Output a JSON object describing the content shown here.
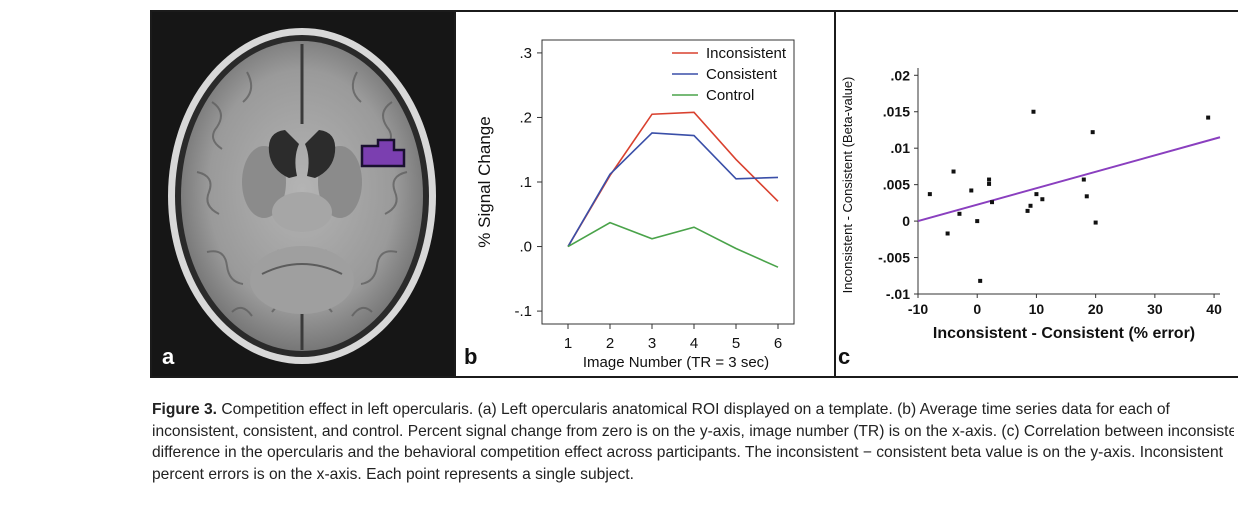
{
  "panel_labels": {
    "a": "a",
    "b": "b",
    "c": "c"
  },
  "colors": {
    "inconsistent": "#d9412f",
    "consistent": "#3a4fa8",
    "control": "#4aa34a",
    "roi": "#7b3fb0",
    "regression": "#8a3fbf"
  },
  "chart_data": [
    {
      "type": "line",
      "xlabel": "Image Number (TR = 3 sec)",
      "ylabel": "% Signal Change",
      "x": [
        1,
        2,
        3,
        4,
        5,
        6
      ],
      "xticks": [
        "1",
        "2",
        "3",
        "4",
        "5",
        "6"
      ],
      "yticks": [
        ".3",
        ".2",
        ".1",
        ".0",
        "-.1"
      ],
      "ytick_values": [
        0.3,
        0.2,
        0.1,
        0.0,
        -0.1
      ],
      "ylim": [
        -0.12,
        0.32
      ],
      "legend_position": "top-right",
      "series": [
        {
          "name": "Inconsistent",
          "color": "#d9412f",
          "values": [
            0.0,
            0.11,
            0.205,
            0.208,
            0.135,
            0.07
          ]
        },
        {
          "name": "Consistent",
          "color": "#3a4fa8",
          "values": [
            0.0,
            0.112,
            0.176,
            0.172,
            0.105,
            0.107
          ]
        },
        {
          "name": "Control",
          "color": "#4aa34a",
          "values": [
            0.0,
            0.037,
            0.012,
            0.03,
            -0.003,
            -0.032
          ]
        }
      ]
    },
    {
      "type": "scatter",
      "xlabel": "Inconsistent - Consistent (% error)",
      "ylabel": "Inconsistent - Consistent (Beta-value)",
      "xticks": [
        "-10",
        "0",
        "10",
        "20",
        "30",
        "40"
      ],
      "xtick_values": [
        -10,
        0,
        10,
        20,
        30,
        40
      ],
      "yticks": [
        ".02",
        ".015",
        ".01",
        ".005",
        "0",
        "-.005",
        "-.01"
      ],
      "ytick_values": [
        0.02,
        0.015,
        0.01,
        0.005,
        0,
        -0.005,
        -0.01
      ],
      "xlim": [
        -10,
        41
      ],
      "ylim": [
        -0.01,
        0.021
      ],
      "points": [
        {
          "x": -8,
          "y": 0.0037
        },
        {
          "x": -5,
          "y": -0.0017
        },
        {
          "x": -4,
          "y": 0.0068
        },
        {
          "x": -3,
          "y": 0.001
        },
        {
          "x": -1,
          "y": 0.0042
        },
        {
          "x": 0,
          "y": 0.0
        },
        {
          "x": 0.5,
          "y": -0.0082
        },
        {
          "x": 2,
          "y": 0.0057
        },
        {
          "x": 2,
          "y": 0.0051
        },
        {
          "x": 2.5,
          "y": 0.0026
        },
        {
          "x": 8.5,
          "y": 0.0014
        },
        {
          "x": 9,
          "y": 0.0021
        },
        {
          "x": 9.5,
          "y": 0.015
        },
        {
          "x": 10,
          "y": 0.0037
        },
        {
          "x": 11,
          "y": 0.003
        },
        {
          "x": 18,
          "y": 0.0057
        },
        {
          "x": 18.5,
          "y": 0.0034
        },
        {
          "x": 19.5,
          "y": 0.0122
        },
        {
          "x": 20,
          "y": -0.0002
        },
        {
          "x": 39,
          "y": 0.0142
        }
      ],
      "regression": {
        "x": [
          -10,
          41
        ],
        "y": [
          0.0,
          0.0115
        ]
      }
    }
  ],
  "caption": {
    "figure_label": "Figure 3.",
    "lines": [
      " Competition effect in left opercularis. (a) Left opercularis anatomical ROI displayed on a template. (b) Average time series data for each of",
      "inconsistent, consistent, and control. Percent signal change from zero is on the y-axis, image number (TR) is on the x-axis. (c) Correlation between inconsistent",
      "difference in the opercularis and the behavioral competition effect across participants. The inconsistent − consistent beta value is on the y-axis. Inconsistent",
      "percent errors is on the x-axis. Each point represents a single subject."
    ]
  }
}
